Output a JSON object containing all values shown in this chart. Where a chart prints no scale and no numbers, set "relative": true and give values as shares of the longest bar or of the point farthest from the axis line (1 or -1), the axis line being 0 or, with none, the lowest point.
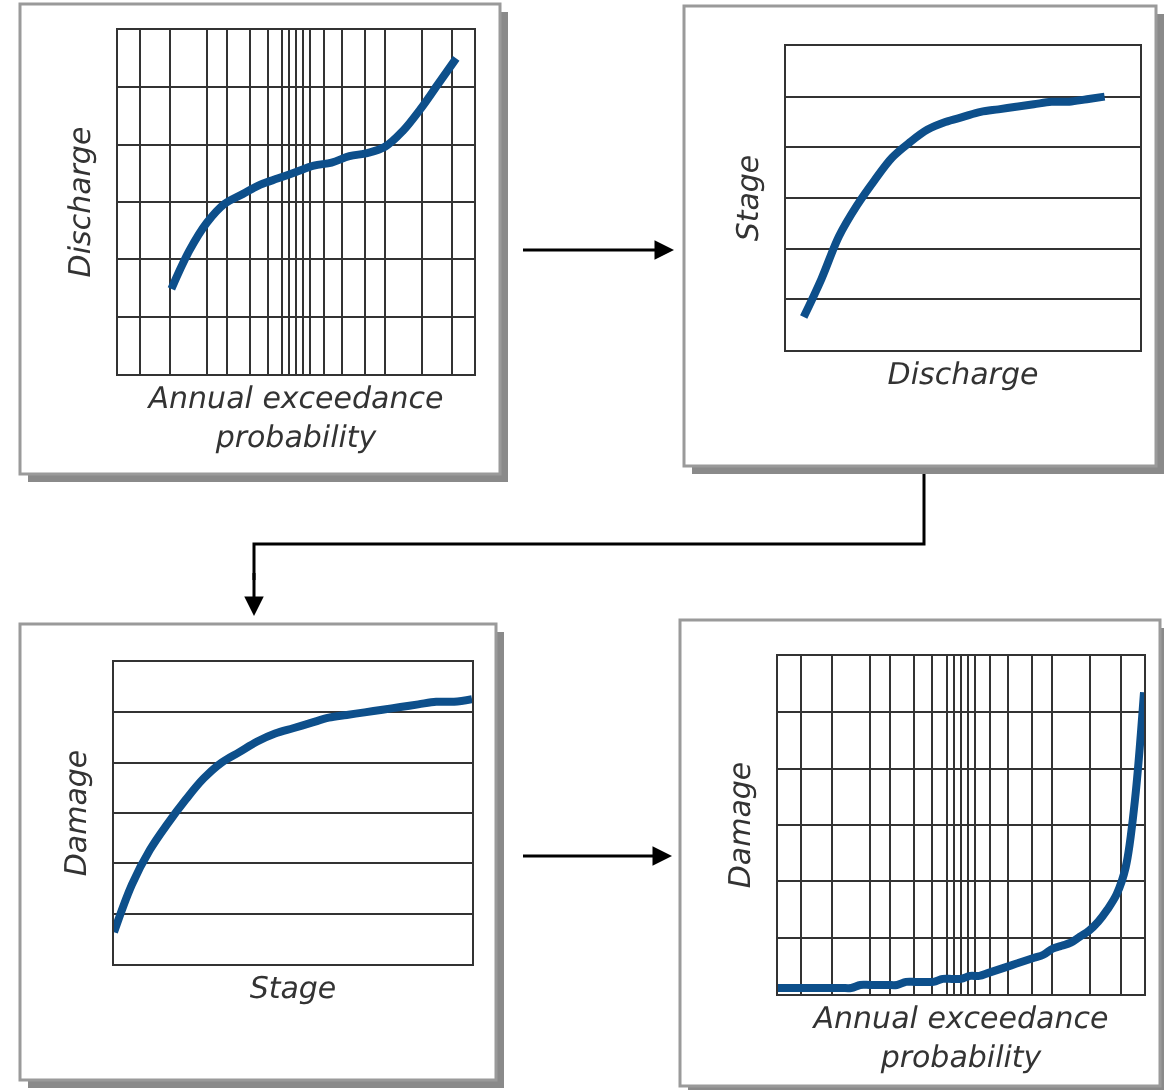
{
  "chart_data": [
    {
      "type": "line",
      "relative": true,
      "xlabel": "Annual exceedance probability",
      "ylabel": "Discharge",
      "grid": true,
      "categories": [
        null,
        null,
        null,
        null,
        null,
        null,
        null,
        null,
        null,
        null,
        null,
        null,
        null,
        null,
        null,
        null,
        null,
        null,
        null,
        null,
        null
      ],
      "series": [
        {
          "color": "#0d4f8b",
          "values": [
            null,
            null,
            null,
            0.27,
            0.39,
            0.48,
            0.54,
            0.57,
            0.6,
            0.62,
            0.64,
            0.66,
            0.67,
            0.69,
            0.7,
            0.72,
            0.77,
            0.84,
            0.92,
            1.0,
            null
          ]
        }
      ]
    },
    {
      "type": "line",
      "relative": true,
      "xlabel": "Discharge",
      "ylabel": "Stage",
      "grid": "y",
      "categories": [
        null,
        null,
        null,
        null,
        null,
        null,
        null,
        null,
        null,
        null,
        null,
        null,
        null,
        null,
        null,
        null,
        null,
        null,
        null,
        null,
        null
      ],
      "series": [
        {
          "color": "#0d4f8b",
          "values": [
            null,
            0.13,
            0.28,
            0.45,
            0.57,
            0.67,
            0.76,
            0.82,
            0.87,
            0.9,
            0.92,
            0.94,
            0.95,
            0.96,
            0.97,
            0.98,
            0.98,
            0.99,
            1.0,
            null,
            null
          ]
        }
      ]
    },
    {
      "type": "line",
      "relative": true,
      "xlabel": "Stage",
      "ylabel": "Damage",
      "grid": "y",
      "categories": [
        null,
        null,
        null,
        null,
        null,
        null,
        null,
        null,
        null,
        null,
        null,
        null,
        null,
        null,
        null,
        null,
        null,
        null,
        null,
        null,
        null
      ],
      "series": [
        {
          "color": "#0d4f8b",
          "values": [
            0.12,
            0.3,
            0.43,
            0.53,
            0.62,
            0.7,
            0.76,
            0.8,
            0.84,
            0.87,
            0.89,
            0.91,
            0.93,
            0.94,
            0.95,
            0.96,
            0.97,
            0.98,
            0.99,
            0.99,
            1.0
          ]
        }
      ]
    },
    {
      "type": "line",
      "relative": true,
      "xlabel": "Annual exceedance probability",
      "ylabel": "Damage",
      "grid": true,
      "categories": [
        null,
        null,
        null,
        null,
        null,
        null,
        null,
        null,
        null,
        null,
        null,
        null,
        null,
        null,
        null,
        null,
        null,
        null,
        null,
        null,
        null,
        null,
        null,
        null,
        null,
        null,
        null,
        null,
        null,
        null,
        null,
        null,
        null,
        null,
        null,
        null,
        null,
        null,
        null,
        null,
        null
      ],
      "series": [
        {
          "color": "#0d4f8b",
          "values": [
            0.02,
            0.02,
            0.02,
            0.02,
            0.02,
            0.02,
            0.02,
            0.02,
            0.02,
            0.03,
            0.03,
            0.03,
            0.03,
            0.03,
            0.04,
            0.04,
            0.04,
            0.04,
            0.05,
            0.05,
            0.05,
            0.06,
            0.06,
            0.07,
            0.08,
            0.09,
            0.1,
            0.11,
            0.12,
            0.13,
            0.15,
            0.16,
            0.17,
            0.19,
            0.21,
            0.24,
            0.28,
            0.33,
            0.42,
            0.64,
            1.0
          ]
        }
      ]
    }
  ]
}
